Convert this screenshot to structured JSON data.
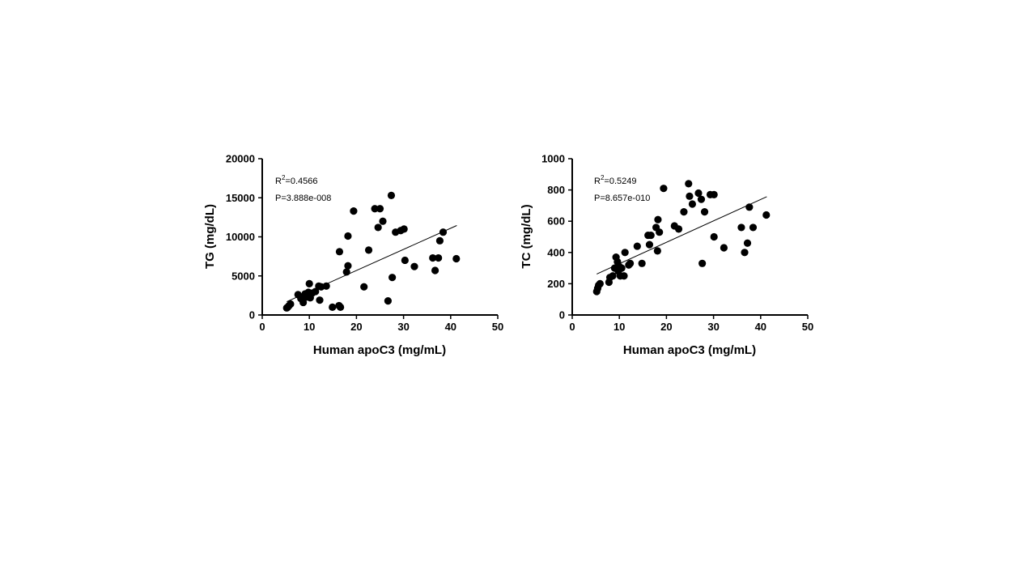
{
  "chart_data": [
    {
      "type": "scatter",
      "xlabel": "Human apoC3 (mg/mL)",
      "ylabel": "TG (mg/dL)",
      "xlim": [
        0,
        50
      ],
      "ylim": [
        0,
        20000
      ],
      "xticks": [
        "0",
        "10",
        "20",
        "30",
        "40",
        "50"
      ],
      "yticks": [
        "0",
        "5000",
        "10000",
        "15000",
        "20000"
      ],
      "stats": {
        "r2_prefix": "R",
        "r2_sup": "2",
        "r2_value": "=0.4566",
        "p": "P=3.888e-008"
      },
      "fit": {
        "x": [
          5.2,
          41.3
        ],
        "y": [
          1700,
          11450
        ]
      },
      "grid": false,
      "points": [
        [
          5.2,
          900
        ],
        [
          5.4,
          1000
        ],
        [
          5.7,
          1200
        ],
        [
          6.0,
          1400
        ],
        [
          7.6,
          2600
        ],
        [
          8.2,
          2100
        ],
        [
          8.7,
          1600
        ],
        [
          9.1,
          2700
        ],
        [
          9.5,
          2300
        ],
        [
          9.8,
          2900
        ],
        [
          10.0,
          4000
        ],
        [
          10.2,
          2200
        ],
        [
          10.6,
          2800
        ],
        [
          11.3,
          3000
        ],
        [
          12.0,
          3700
        ],
        [
          12.2,
          1900
        ],
        [
          12.5,
          3600
        ],
        [
          13.6,
          3700
        ],
        [
          14.9,
          1000
        ],
        [
          16.3,
          1200
        ],
        [
          16.6,
          1000
        ],
        [
          16.4,
          8100
        ],
        [
          17.9,
          5500
        ],
        [
          18.2,
          6300
        ],
        [
          18.2,
          10100
        ],
        [
          19.4,
          13300
        ],
        [
          21.6,
          3600
        ],
        [
          22.6,
          8300
        ],
        [
          23.9,
          13600
        ],
        [
          24.6,
          11200
        ],
        [
          25.0,
          13600
        ],
        [
          25.6,
          12000
        ],
        [
          26.7,
          1800
        ],
        [
          27.4,
          15300
        ],
        [
          27.6,
          4800
        ],
        [
          28.3,
          10600
        ],
        [
          29.4,
          10800
        ],
        [
          30.1,
          11000
        ],
        [
          30.3,
          7000
        ],
        [
          32.3,
          6200
        ],
        [
          36.2,
          7300
        ],
        [
          36.7,
          5700
        ],
        [
          37.4,
          7300
        ],
        [
          37.7,
          9500
        ],
        [
          38.4,
          10600
        ],
        [
          41.2,
          7200
        ]
      ]
    },
    {
      "type": "scatter",
      "xlabel": "Human apoC3 (mg/mL)",
      "ylabel": "TC (mg/dL)",
      "xlim": [
        0,
        50
      ],
      "ylim": [
        0,
        1000
      ],
      "xticks": [
        "0",
        "10",
        "20",
        "30",
        "40",
        "50"
      ],
      "yticks": [
        "0",
        "200",
        "400",
        "600",
        "800",
        "1000"
      ],
      "stats": {
        "r2_prefix": "R",
        "r2_sup": "2",
        "r2_value": "=0.5249",
        "p": "P=8.657e-010"
      },
      "fit": {
        "x": [
          5.2,
          41.3
        ],
        "y": [
          262,
          757
        ]
      },
      "grid": false,
      "points": [
        [
          5.2,
          150
        ],
        [
          5.4,
          170
        ],
        [
          5.6,
          190
        ],
        [
          5.9,
          200
        ],
        [
          7.8,
          210
        ],
        [
          8.0,
          240
        ],
        [
          8.6,
          250
        ],
        [
          9.0,
          300
        ],
        [
          9.3,
          370
        ],
        [
          9.6,
          340
        ],
        [
          9.8,
          280
        ],
        [
          10.0,
          310
        ],
        [
          10.2,
          250
        ],
        [
          10.5,
          300
        ],
        [
          11.0,
          250
        ],
        [
          11.2,
          400
        ],
        [
          12.0,
          320
        ],
        [
          12.3,
          330
        ],
        [
          13.8,
          440
        ],
        [
          14.8,
          330
        ],
        [
          16.1,
          510
        ],
        [
          16.4,
          450
        ],
        [
          16.7,
          510
        ],
        [
          17.8,
          560
        ],
        [
          18.2,
          610
        ],
        [
          18.1,
          410
        ],
        [
          18.5,
          530
        ],
        [
          19.4,
          810
        ],
        [
          21.7,
          570
        ],
        [
          22.6,
          550
        ],
        [
          23.7,
          660
        ],
        [
          24.7,
          840
        ],
        [
          24.9,
          760
        ],
        [
          25.5,
          710
        ],
        [
          26.8,
          780
        ],
        [
          27.4,
          740
        ],
        [
          27.6,
          330
        ],
        [
          28.1,
          660
        ],
        [
          29.3,
          770
        ],
        [
          30.1,
          770
        ],
        [
          30.1,
          500
        ],
        [
          32.2,
          430
        ],
        [
          35.9,
          560
        ],
        [
          36.6,
          400
        ],
        [
          37.2,
          460
        ],
        [
          37.6,
          690
        ],
        [
          38.4,
          560
        ],
        [
          41.2,
          640
        ]
      ]
    }
  ]
}
